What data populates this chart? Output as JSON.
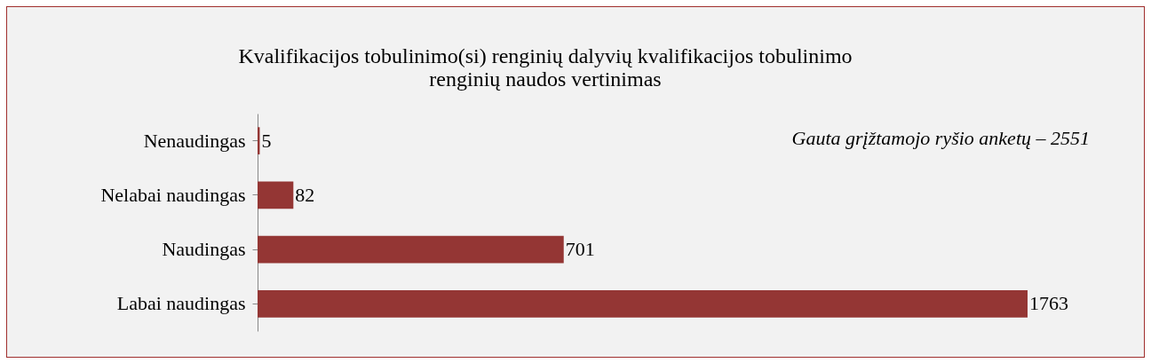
{
  "chart_data": {
    "type": "bar",
    "orientation": "horizontal",
    "title": "Kvalifikacijos tobulinimo(si) renginių dalyvių kvalifikacijos tobulinimo\nrenginių naudos vertinimas",
    "categories": [
      "Nenaudingas",
      "Nelabai naudingas",
      "Naudingas",
      "Labai naudingas"
    ],
    "values": [
      5,
      82,
      701,
      1763
    ],
    "color": "#943634",
    "data_labels": true,
    "annotations": [
      "Gauta grįžtamojo ryšio anketų – 2551"
    ]
  }
}
